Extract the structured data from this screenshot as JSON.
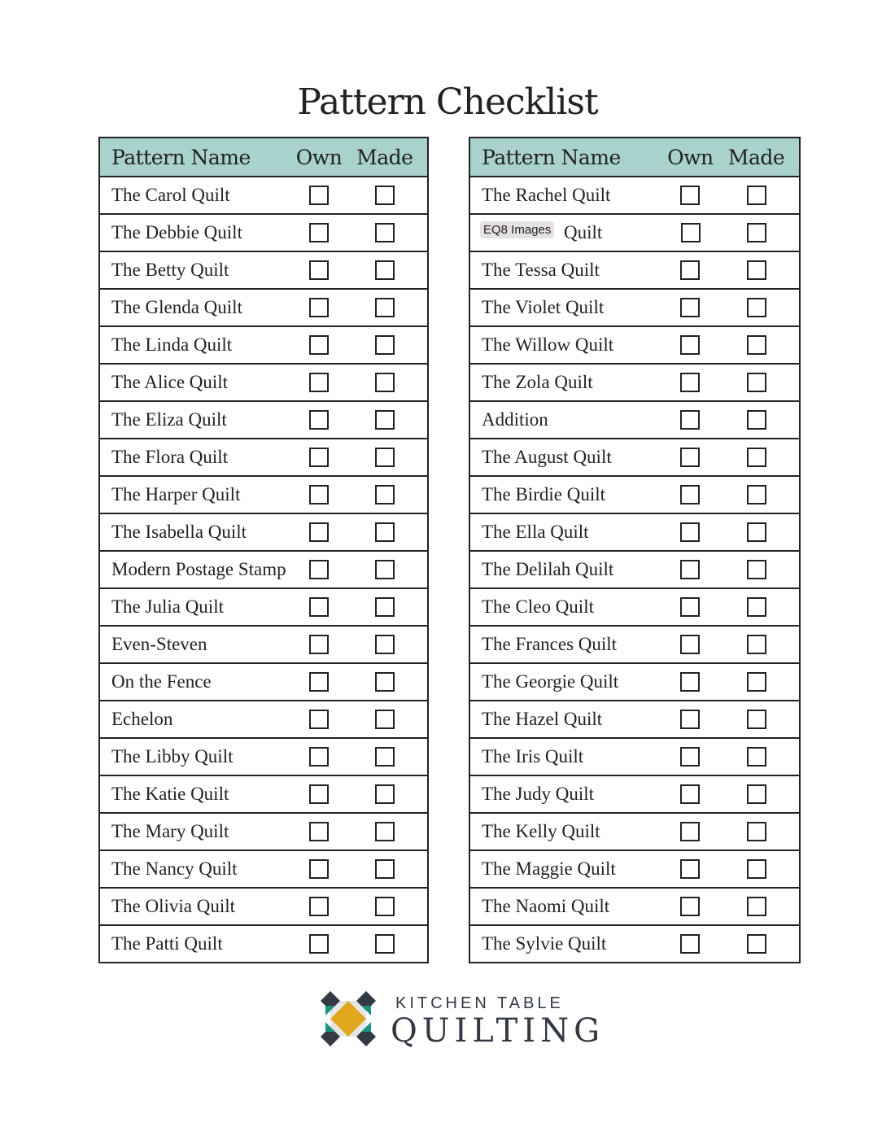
{
  "title": "Pattern Checklist",
  "headers": {
    "name": "Pattern Name",
    "own": "Own",
    "made": "Made"
  },
  "header_color": "#a8d2cb",
  "left_rows": [
    "The Carol Quilt",
    "The Debbie Quilt",
    "The Betty Quilt",
    "The Glenda Quilt",
    "The Linda Quilt",
    "The Alice Quilt",
    "The Eliza Quilt",
    "The Flora Quilt",
    "The Harper Quilt",
    "The Isabella Quilt",
    "Modern Postage Stamp",
    "The Julia Quilt",
    "Even-Steven",
    "On the Fence",
    "Echelon",
    "The Libby Quilt",
    "The Katie Quilt",
    "The Mary Quilt",
    "The Nancy Quilt",
    "The Olivia Quilt",
    "The Patti Quilt"
  ],
  "right_rows": [
    "The Rachel Quilt",
    "Quilt",
    "The Tessa Quilt",
    "The Violet Quilt",
    "The Willow Quilt",
    "The Zola Quilt",
    "Addition",
    "The August Quilt",
    "The Birdie Quilt",
    "The Ella Quilt",
    "The Delilah Quilt",
    "The Cleo Quilt",
    "The Frances Quilt",
    "The Georgie Quilt",
    "The Hazel Quilt",
    "The Iris Quilt",
    "The Judy Quilt",
    "The Kelly Quilt",
    "The Maggie Quilt",
    "The Naomi Quilt",
    "The Sylvie Quilt"
  ],
  "overlay_badge": "EQ8 Images",
  "logo": {
    "line1": "KITCHEN TABLE",
    "line2": "QUILTING",
    "colors": {
      "teal": "#17937f",
      "gold": "#e0a71c",
      "dark": "#333a44",
      "light": "#e6e6e6"
    }
  }
}
